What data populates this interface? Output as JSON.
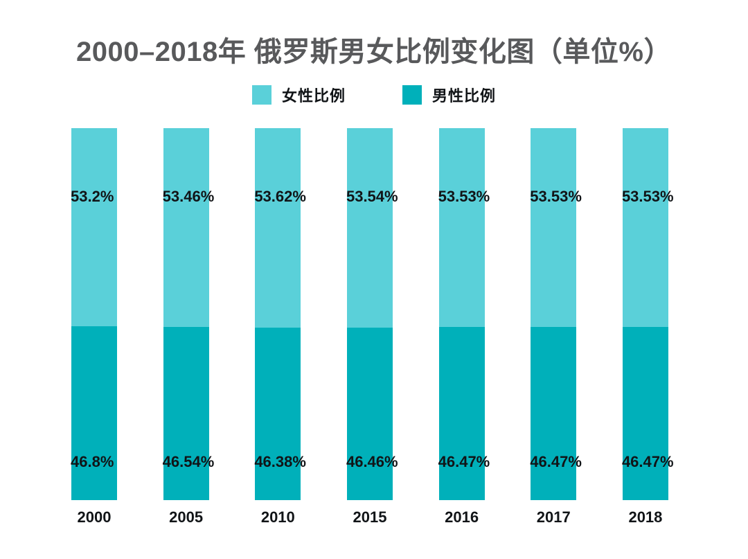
{
  "title": "2000–2018年 俄罗斯男女比例变化图（单位%）",
  "legend": [
    {
      "label": "女性比例",
      "color": "#5ad0d9"
    },
    {
      "label": "男性比例",
      "color": "#00b0ba"
    }
  ],
  "colors": {
    "female": "#5ad0d9",
    "male": "#00b0ba",
    "title_text": "#58595b",
    "label_text": "#111417",
    "background": "#ffffff"
  },
  "chart_data": {
    "type": "bar",
    "stacked": true,
    "title": "2000–2018年 俄罗斯男女比例变化图（单位%）",
    "xlabel": "",
    "ylabel": "",
    "categories": [
      "2000",
      "2005",
      "2010",
      "2015",
      "2016",
      "2017",
      "2018"
    ],
    "series": [
      {
        "name": "女性比例",
        "color": "#5ad0d9",
        "values": [
          53.2,
          53.46,
          53.62,
          53.54,
          53.53,
          53.53,
          53.53
        ],
        "labels": [
          "53.2%",
          "53.46%",
          "53.62%",
          "53.54%",
          "53.53%",
          "53.53%",
          "53.53%"
        ]
      },
      {
        "name": "男性比例",
        "color": "#00b0ba",
        "values": [
          46.8,
          46.54,
          46.38,
          46.46,
          46.47,
          46.47,
          46.47
        ],
        "labels": [
          "46.8%",
          "46.54%",
          "46.38%",
          "46.46%",
          "46.47%",
          "46.47%",
          "46.47%"
        ]
      }
    ],
    "ylim": [
      0,
      100
    ],
    "grid": false,
    "legend_position": "top"
  }
}
